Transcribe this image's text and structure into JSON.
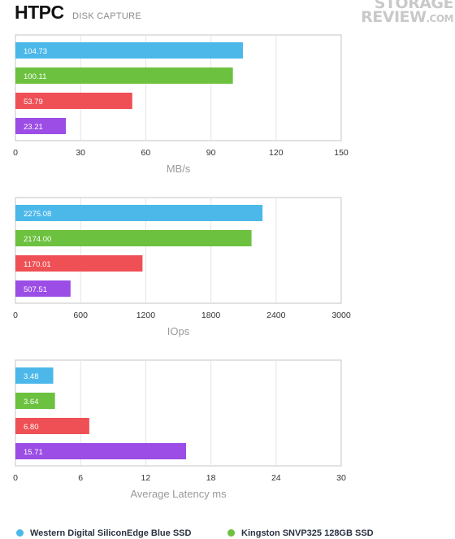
{
  "header": {
    "title": "HTPC",
    "subtitle": "DISK CAPTURE",
    "watermark_line1": "STORAGE",
    "watermark_line2": "REVIEW",
    "watermark_suffix": ".COM"
  },
  "legend": [
    {
      "name": "Western Digital SiliconEdge Blue SSD",
      "color": "#4cb8ea"
    },
    {
      "name": "Kingston SNVP325 128GB SSD",
      "color": "#6cc13f"
    }
  ],
  "chart_data": [
    {
      "type": "bar",
      "orientation": "horizontal",
      "values": [
        104.73,
        100.11,
        53.79,
        23.21
      ],
      "labels": [
        "104.73",
        "100.11",
        "53.79",
        "23.21"
      ],
      "colors": [
        "#4cb8ea",
        "#6cc13f",
        "#ef5055",
        "#9b4de6"
      ],
      "xlabel": "MB/s",
      "xlim": [
        0,
        150
      ],
      "ticks": [
        0,
        30,
        60,
        90,
        120,
        150
      ],
      "tick_labels": [
        "0",
        "30",
        "60",
        "90",
        "120",
        "150"
      ],
      "grid": true
    },
    {
      "type": "bar",
      "orientation": "horizontal",
      "values": [
        2275.08,
        2174.0,
        1170.01,
        507.51
      ],
      "labels": [
        "2275.08",
        "2174.00",
        "1170.01",
        "507.51"
      ],
      "colors": [
        "#4cb8ea",
        "#6cc13f",
        "#ef5055",
        "#9b4de6"
      ],
      "xlabel": "IOps",
      "xlim": [
        0,
        3000
      ],
      "ticks": [
        0,
        600,
        1200,
        1800,
        2400,
        3000
      ],
      "tick_labels": [
        "0",
        "600",
        "1200",
        "1800",
        "2400",
        "3000"
      ],
      "grid": true
    },
    {
      "type": "bar",
      "orientation": "horizontal",
      "values": [
        3.48,
        3.64,
        6.8,
        15.71
      ],
      "labels": [
        "3.48",
        "3.64",
        "6.80",
        "15.71"
      ],
      "colors": [
        "#4cb8ea",
        "#6cc13f",
        "#ef5055",
        "#9b4de6"
      ],
      "xlabel": "Average Latency ms",
      "xlim": [
        0,
        30
      ],
      "ticks": [
        0,
        6,
        12,
        18,
        24,
        30
      ],
      "tick_labels": [
        "0",
        "6",
        "12",
        "18",
        "24",
        "30"
      ],
      "grid": true
    }
  ]
}
